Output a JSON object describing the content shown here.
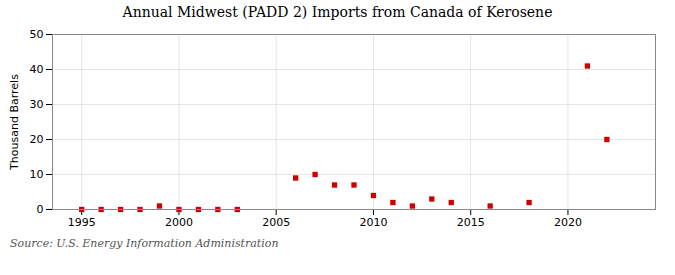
{
  "chart_data": {
    "type": "scatter",
    "title": "Annual Midwest (PADD 2) Imports from Canada of Kerosene",
    "ylabel": "Thousand Barrels",
    "caption": "Source: U.S. Energy Information Administration",
    "x": [
      1995,
      1996,
      1997,
      1998,
      1999,
      2000,
      2001,
      2002,
      2003,
      2006,
      2007,
      2008,
      2009,
      2010,
      2011,
      2012,
      2013,
      2014,
      2016,
      2018,
      2021,
      2022
    ],
    "values": [
      0,
      0,
      0,
      0,
      1.0,
      0,
      0,
      0,
      0,
      9.0,
      10.0,
      7.0,
      7.0,
      4.0,
      2.0,
      1.0,
      3.0,
      2.0,
      1.0,
      2.0,
      41.0,
      20.0
    ],
    "color": "#cc0000",
    "marker": "square",
    "xlim": [
      1993.5,
      2024.5
    ],
    "xticks": [
      1995,
      2000,
      2005,
      2010,
      2015,
      2020
    ],
    "ylim": [
      0,
      50
    ],
    "yticks": [
      0,
      10,
      20,
      30,
      40,
      50
    ],
    "grid": true
  }
}
